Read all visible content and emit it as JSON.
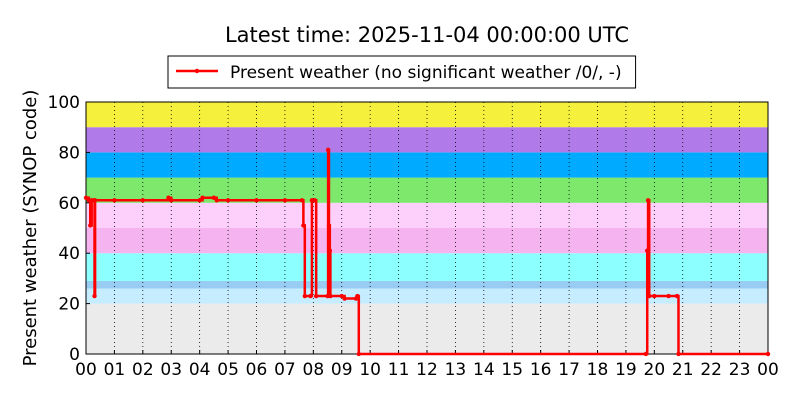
{
  "chart_data": {
    "type": "line",
    "title": "Latest time: 2025-11-04 00:00:00 UTC",
    "y_label": "Present weather (SYNOP code)",
    "drawstyle": "steps-post",
    "grid": "x",
    "legend_position": "top",
    "xlim": [
      0,
      24
    ],
    "ylim": [
      0,
      100
    ],
    "xticks": [
      {
        "value": 0,
        "label": "00"
      },
      {
        "value": 1,
        "label": "01"
      },
      {
        "value": 2,
        "label": "02"
      },
      {
        "value": 3,
        "label": "03"
      },
      {
        "value": 4,
        "label": "04"
      },
      {
        "value": 5,
        "label": "05"
      },
      {
        "value": 6,
        "label": "06"
      },
      {
        "value": 7,
        "label": "07"
      },
      {
        "value": 8,
        "label": "08"
      },
      {
        "value": 9,
        "label": "09"
      },
      10,
      11,
      12,
      13,
      14,
      15,
      16,
      17,
      18,
      19,
      20,
      21,
      22,
      23,
      {
        "value": 24,
        "label": "00"
      }
    ],
    "yticks": [
      0,
      20,
      40,
      60,
      80,
      100
    ],
    "background_bands": [
      {
        "from": 0,
        "to": 20,
        "color": "#ebebeb"
      },
      {
        "from": 20,
        "to": 26,
        "color": "#c6ecff"
      },
      {
        "from": 26,
        "to": 29,
        "color": "#99ccf2"
      },
      {
        "from": 29,
        "to": 40,
        "color": "#8cffff"
      },
      {
        "from": 40,
        "to": 50,
        "color": "#f5b3f0"
      },
      {
        "from": 50,
        "to": 60,
        "color": "#fcd0fa"
      },
      {
        "from": 60,
        "to": 70,
        "color": "#7de86c"
      },
      {
        "from": 70,
        "to": 80,
        "color": "#00aaff"
      },
      {
        "from": 80,
        "to": 90,
        "color": "#b07be8"
      },
      {
        "from": 90,
        "to": 100,
        "color": "#f5f03c"
      }
    ],
    "series": [
      {
        "name": "Present weather (no significant weather /0/, -)",
        "color": "#ff0000",
        "x": [
          0,
          0.1,
          0.15,
          0.2,
          0.28,
          0.3,
          0.32,
          1,
          2,
          2.9,
          3,
          4,
          4.1,
          4.5,
          4.6,
          5,
          6,
          7,
          7.6,
          7.65,
          7.7,
          7.9,
          7.95,
          8.05,
          8.1,
          8.5,
          8.52,
          8.55,
          8.58,
          8.6,
          9,
          9.1,
          9.5,
          9.55,
          9.6,
          19.7,
          19.75,
          19.78,
          19.82,
          20,
          20.5,
          20.8,
          20.85,
          24
        ],
        "values": [
          62,
          61,
          51,
          61,
          61,
          23,
          61,
          61,
          61,
          62,
          61,
          61,
          62,
          62,
          61,
          61,
          61,
          61,
          61,
          51,
          23,
          23,
          61,
          61,
          23,
          23,
          81,
          51,
          41,
          23,
          23,
          22,
          22,
          23,
          0,
          0,
          41,
          61,
          23,
          23,
          23,
          23,
          0,
          0
        ]
      }
    ]
  }
}
